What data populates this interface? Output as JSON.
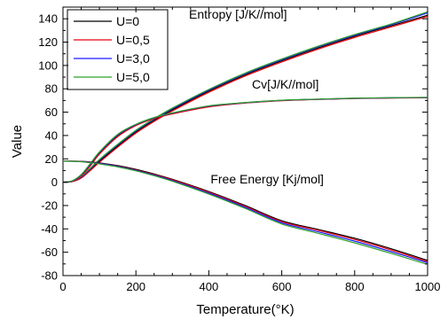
{
  "chart_data": {
    "type": "line",
    "xlabel": "Temperature(°K)",
    "ylabel": "Value",
    "xlim": [
      0,
      1000
    ],
    "ylim": [
      -80,
      150
    ],
    "x_ticks": [
      0,
      200,
      400,
      600,
      800,
      1000
    ],
    "y_ticks": [
      -80,
      -60,
      -40,
      -20,
      0,
      20,
      40,
      60,
      80,
      100,
      120,
      140
    ],
    "grid": false,
    "legend_position": "top-left",
    "x": [
      0,
      25,
      50,
      75,
      100,
      150,
      200,
      250,
      300,
      400,
      500,
      600,
      700,
      800,
      900,
      1000
    ],
    "series": [
      {
        "name": "U=0",
        "color": "#000000",
        "group": "Entropy",
        "values": [
          0,
          0.5,
          4,
          11,
          18,
          31,
          43,
          53,
          62,
          78,
          92,
          104,
          115,
          125,
          134,
          143
        ]
      },
      {
        "name": "U=0,5",
        "color": "#e8000b",
        "group": "Entropy",
        "values": [
          0,
          0.4,
          3.5,
          10,
          17,
          30,
          42,
          52,
          61,
          77,
          91,
          103,
          114,
          124,
          133,
          142
        ]
      },
      {
        "name": "U=3,0",
        "color": "#1a1aff",
        "group": "Entropy",
        "values": [
          0,
          0.6,
          4.5,
          11.5,
          19,
          32,
          44,
          54,
          63,
          79,
          93,
          105,
          116,
          126,
          135,
          145
        ]
      },
      {
        "name": "U=5,0",
        "color": "#2ca02c",
        "group": "Entropy",
        "values": [
          0,
          0.7,
          5,
          12,
          19.5,
          32.5,
          44.5,
          54.5,
          63.5,
          79.5,
          93.5,
          105.5,
          116.5,
          126.5,
          135.5,
          146
        ]
      },
      {
        "name": "U=0",
        "color": "#000000",
        "group": "Cv",
        "values": [
          0,
          1,
          6,
          15,
          25,
          40,
          49,
          55,
          59,
          65,
          68,
          70,
          71,
          71.8,
          72.2,
          72.5
        ]
      },
      {
        "name": "U=0,5",
        "color": "#e8000b",
        "group": "Cv",
        "values": [
          0,
          0.8,
          5.5,
          14,
          24,
          39,
          48.5,
          54.5,
          58.5,
          64.5,
          67.8,
          69.8,
          70.9,
          71.7,
          72.1,
          72.4
        ]
      },
      {
        "name": "U=3,0",
        "color": "#1a1aff",
        "group": "Cv",
        "values": [
          0,
          1.1,
          6.3,
          15.5,
          25.5,
          40.5,
          49.3,
          55.2,
          59.2,
          65.2,
          68.1,
          70.1,
          71.1,
          71.9,
          72.3,
          72.6
        ]
      },
      {
        "name": "U=5,0",
        "color": "#2ca02c",
        "group": "Cv",
        "values": [
          0,
          1.2,
          6.6,
          16,
          26,
          41,
          49.6,
          55.4,
          59.4,
          65.4,
          68.2,
          70.2,
          71.2,
          72,
          72.4,
          72.7
        ]
      },
      {
        "name": "U=0",
        "color": "#000000",
        "group": "Free Energy",
        "values": [
          18,
          18,
          17.8,
          17.3,
          16.5,
          14.2,
          11,
          7,
          2.5,
          -8,
          -20,
          -33,
          -40.5,
          -48,
          -57,
          -67
        ]
      },
      {
        "name": "U=0,5",
        "color": "#e8000b",
        "group": "Free Energy",
        "values": [
          18,
          18,
          17.7,
          17.1,
          16.2,
          13.8,
          10.5,
          6.5,
          2,
          -8.6,
          -20.7,
          -33.8,
          -41.2,
          -49,
          -58,
          -68
        ]
      },
      {
        "name": "U=3,0",
        "color": "#1a1aff",
        "group": "Free Energy",
        "values": [
          18,
          17.9,
          17.6,
          16.9,
          16,
          13.5,
          10.1,
          6,
          1.4,
          -9.4,
          -21.6,
          -34.8,
          -42.5,
          -50.5,
          -59.5,
          -69
        ]
      },
      {
        "name": "U=5,0",
        "color": "#2ca02c",
        "group": "Free Energy",
        "values": [
          18,
          17.9,
          17.5,
          16.7,
          15.7,
          13.1,
          9.7,
          5.5,
          0.8,
          -10.2,
          -22.5,
          -35.8,
          -43.8,
          -52,
          -61,
          -70.5
        ]
      }
    ],
    "legend": [
      "U=0",
      "U=0,5",
      "U=3,0",
      "U=5,0"
    ],
    "legend_colors": [
      "#000000",
      "#e8000b",
      "#1a1aff",
      "#2ca02c"
    ],
    "annotations": [
      {
        "text": "Entropy [J/K//mol]",
        "x": 480,
        "y": 140
      },
      {
        "text": "Cv[J/K//mol]",
        "x": 610,
        "y": 80
      },
      {
        "text": "Free Energy [Kj/mol]",
        "x": 560,
        "y": -1
      }
    ]
  }
}
